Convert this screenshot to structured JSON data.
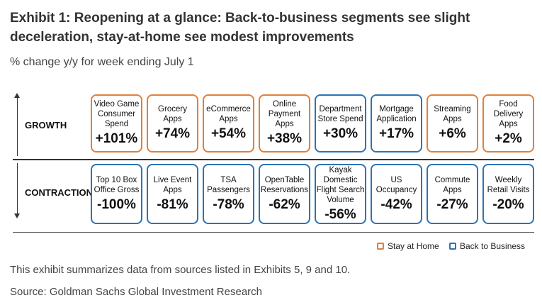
{
  "title": "Exhibit 1: Reopening at a glance: Back-to-business segments see slight deceleration, stay-at-home see modest improvements",
  "subtitle": "% change y/y for week ending July 1",
  "colors": {
    "stay_at_home": "#E0803A",
    "back_to_business": "#2E73B5"
  },
  "chart_data": {
    "type": "table",
    "unit": "% change y/y",
    "rows": [
      {
        "label": "GROWTH",
        "items": [
          {
            "label": "Video Game Consumer Spend",
            "value": "+101%",
            "category": "Stay at Home"
          },
          {
            "label": "Grocery Apps",
            "value": "+74%",
            "category": "Stay at Home"
          },
          {
            "label": "eCommerce Apps",
            "value": "+54%",
            "category": "Stay at Home"
          },
          {
            "label": "Online Payment Apps",
            "value": "+38%",
            "category": "Stay at Home"
          },
          {
            "label": "Department Store Spend",
            "value": "+30%",
            "category": "Back to Business"
          },
          {
            "label": "Mortgage Application",
            "value": "+17%",
            "category": "Back to Business"
          },
          {
            "label": "Streaming Apps",
            "value": "+6%",
            "category": "Stay at Home"
          },
          {
            "label": "Food Delivery Apps",
            "value": "+2%",
            "category": "Stay at Home"
          }
        ]
      },
      {
        "label": "CONTRACTION",
        "items": [
          {
            "label": "Top 10 Box Office Gross",
            "value": "-100%",
            "category": "Back to Business"
          },
          {
            "label": "Live Event Apps",
            "value": "-81%",
            "category": "Back to Business"
          },
          {
            "label": "TSA Passengers",
            "value": "-78%",
            "category": "Back to Business"
          },
          {
            "label": "OpenTable Reservations",
            "value": "-62%",
            "category": "Back to Business"
          },
          {
            "label": "Kayak Domestic Flight Search Volume",
            "value": "-56%",
            "category": "Back to Business"
          },
          {
            "label": "US Occupancy",
            "value": "-42%",
            "category": "Back to Business"
          },
          {
            "label": "Commute Apps",
            "value": "-27%",
            "category": "Back to Business"
          },
          {
            "label": "Weekly Retail Visits",
            "value": "-20%",
            "category": "Back to Business"
          }
        ]
      }
    ],
    "legend": [
      "Stay at Home",
      "Back to Business"
    ],
    "legend_position": "bottom-right"
  },
  "notes": {
    "summary": "This exhibit summarizes data from sources listed in Exhibits 5, 9 and 10.",
    "source": "Source: Goldman Sachs Global Investment Research"
  }
}
